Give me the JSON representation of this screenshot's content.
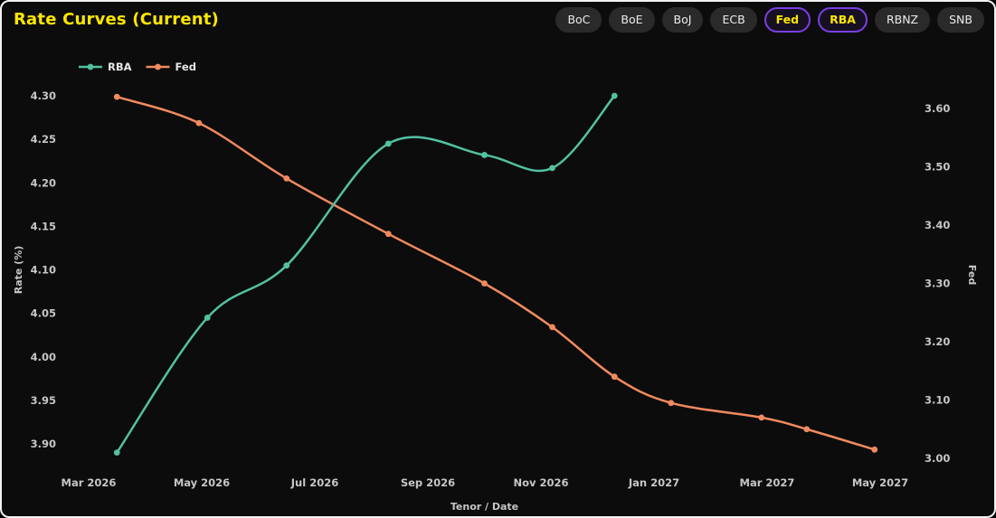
{
  "header": {
    "title": "Rate Curves (Current)",
    "title_color": "#ffe600",
    "chip_active_text_color": "#ffe600",
    "chip_active_border_color": "#7b3fe4",
    "bank_chips": [
      {
        "label": "BoC",
        "active": false
      },
      {
        "label": "BoE",
        "active": false
      },
      {
        "label": "BoJ",
        "active": false
      },
      {
        "label": "ECB",
        "active": false
      },
      {
        "label": "Fed",
        "active": true
      },
      {
        "label": "RBA",
        "active": true
      },
      {
        "label": "RBNZ",
        "active": false
      },
      {
        "label": "SNB",
        "active": false
      }
    ]
  },
  "chart_data": {
    "type": "line",
    "title": "Rate Curves (Current)",
    "xlabel": "Tenor / Date",
    "grid": false,
    "legend_position": "top-left",
    "x_axis": {
      "tick_labels": [
        "Mar 2026",
        "May 2026",
        "Jul 2026",
        "Sep 2026",
        "Nov 2026",
        "Jan 2027",
        "Mar 2027",
        "May 2027"
      ],
      "tick_months_from_mar_2026": [
        0,
        2,
        4,
        6,
        8,
        10,
        12,
        14
      ]
    },
    "axes": {
      "left": {
        "label": "Rate (%)",
        "ticks": [
          3.9,
          3.95,
          4.0,
          4.05,
          4.1,
          4.15,
          4.2,
          4.25,
          4.3
        ],
        "ylim": [
          3.87,
          4.32
        ]
      },
      "right": {
        "label": "Fed",
        "ticks": [
          3.0,
          3.1,
          3.2,
          3.3,
          3.4,
          3.5,
          3.6
        ],
        "ylim": [
          2.99,
          3.64
        ]
      }
    },
    "series": [
      {
        "name": "RBA",
        "color": "#53c1a1",
        "axis": "left",
        "x_months_from_mar_2026": [
          0.5,
          2.1,
          3.5,
          5.3,
          7.0,
          8.2,
          9.3
        ],
        "values": [
          3.89,
          4.045,
          4.105,
          4.245,
          4.232,
          4.217,
          4.3
        ]
      },
      {
        "name": "Fed",
        "color": "#f18a5f",
        "axis": "right",
        "x_months_from_mar_2026": [
          0.5,
          1.95,
          3.5,
          5.3,
          7.0,
          8.2,
          9.3,
          10.3,
          11.9,
          12.7,
          13.9
        ],
        "values": [
          3.62,
          3.575,
          3.48,
          3.385,
          3.3,
          3.225,
          3.14,
          3.095,
          3.07,
          3.05,
          3.015
        ]
      }
    ]
  }
}
